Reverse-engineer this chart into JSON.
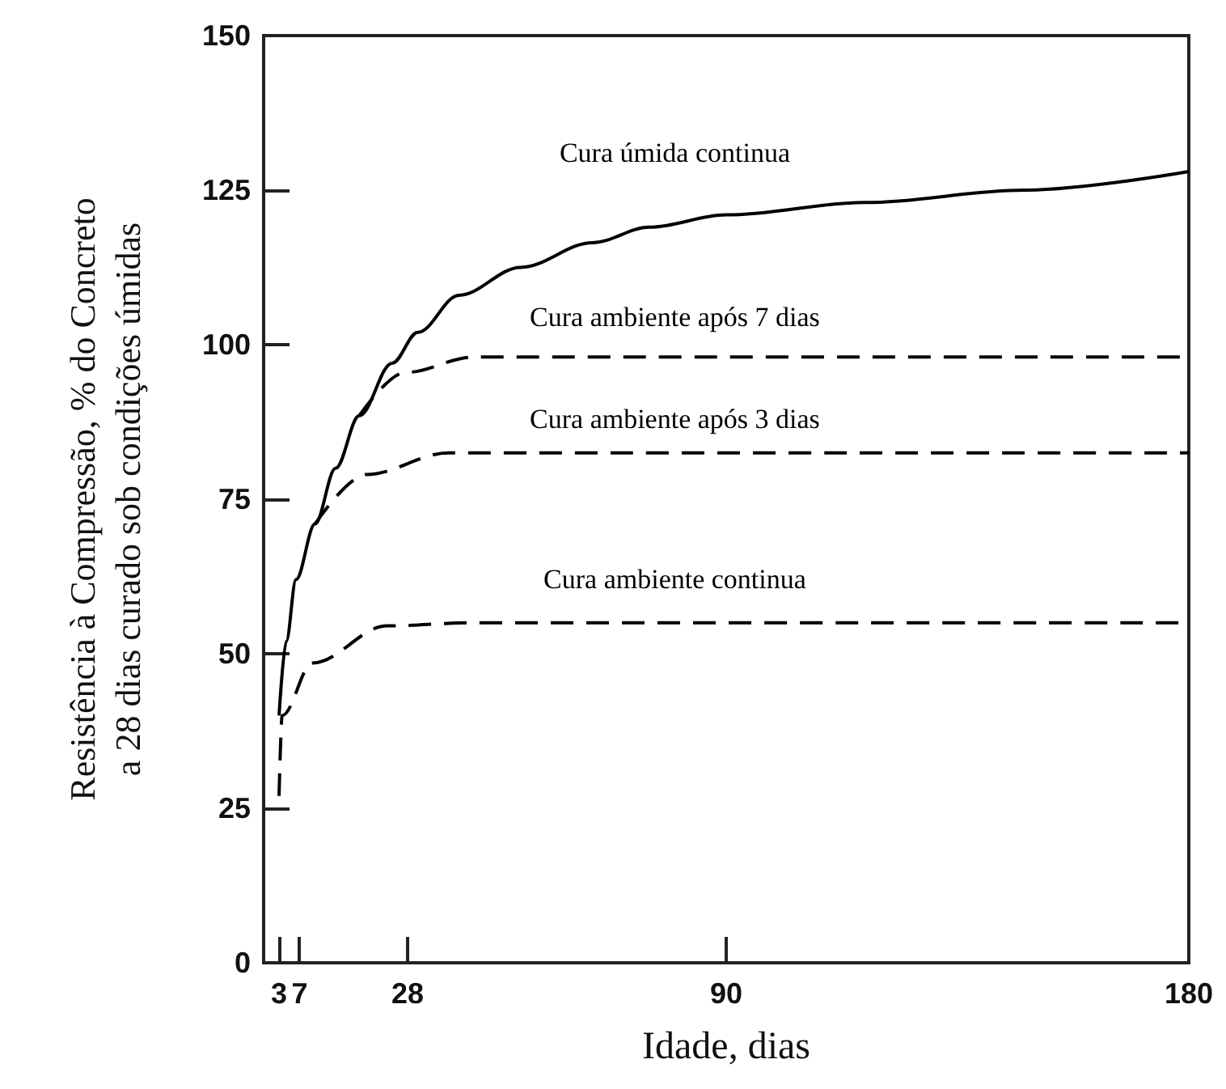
{
  "chart_data": {
    "type": "line",
    "xlabel": "Idade, dias",
    "ylabel": "Resistência à Compressão, % do Concreto\na 28 dias curado sob condições úmidas",
    "xlim": [
      0,
      180
    ],
    "xticks": [
      3,
      7,
      28,
      90,
      180
    ],
    "ylim": [
      0,
      150
    ],
    "yticks": [
      0,
      25,
      50,
      75,
      100,
      125,
      150
    ],
    "grid": false,
    "legend": false,
    "marker": "none",
    "series": [
      {
        "name": "Cura úmida continua",
        "color": "#000000",
        "line_style": "solid",
        "x": [
          3,
          4.4,
          6.3,
          10,
          14,
          18.6,
          25,
          30,
          38,
          50,
          64,
          75,
          90,
          117,
          148,
          180
        ],
        "values": [
          40,
          52,
          62,
          71,
          80,
          88.5,
          97,
          102,
          108,
          112.5,
          116.5,
          119,
          121,
          123,
          125,
          128
        ]
      },
      {
        "name": "Cura ambiente após 7 dias",
        "color": "#000000",
        "line_style": "dashed",
        "x": [
          18.6,
          27.5,
          41,
          180
        ],
        "values": [
          88.5,
          95.5,
          98,
          98
        ]
      },
      {
        "name": "Cura ambiente após 3 dias",
        "color": "#000000",
        "line_style": "dashed",
        "x": [
          10,
          20,
          36,
          180
        ],
        "values": [
          71,
          79,
          82.5,
          82.5
        ]
      },
      {
        "name": "Cura ambiente continua",
        "color": "#000000",
        "line_style": "dashed",
        "x": [
          3,
          3.6,
          9.5,
          24,
          40,
          180
        ],
        "values": [
          27,
          40,
          48.5,
          54.5,
          55,
          55
        ]
      }
    ]
  }
}
